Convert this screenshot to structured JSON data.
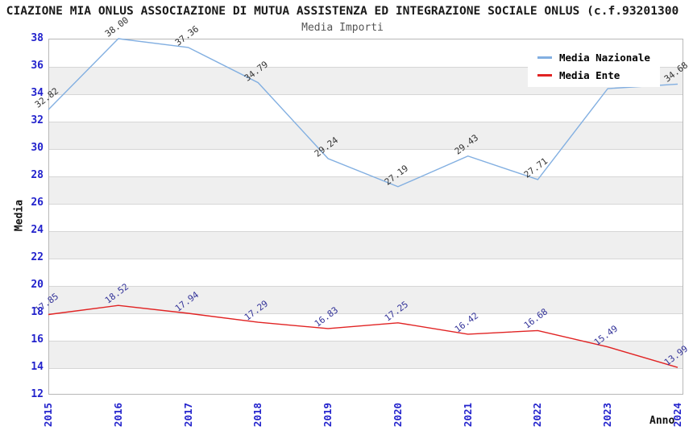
{
  "title": "CIAZIONE MIA ONLUS ASSOCIAZIONE DI MUTUA ASSISTENZA ED INTEGRAZIONE SOCIALE ONLUS (c.f.93201300",
  "subtitle": "Media Importi",
  "chart_data": {
    "type": "line",
    "x": [
      "2015",
      "2016",
      "2017",
      "2018",
      "2019",
      "2020",
      "2021",
      "2022",
      "2023",
      "2024"
    ],
    "xlabel": "Anno",
    "ylabel": "Media",
    "ylim": [
      12,
      38
    ],
    "ytick_step": 2,
    "grid": true,
    "alternating_bands": true,
    "legend_position": "top-right",
    "series": [
      {
        "name": "Media Nazionale",
        "color": "#82AFE1",
        "values": [
          32.82,
          38.0,
          37.36,
          34.79,
          29.24,
          27.19,
          29.43,
          27.71,
          34.35,
          34.68
        ],
        "point_labels": [
          "32.82",
          "38.00",
          "37.36",
          "34.79",
          "29.24",
          "27.19",
          "29.43",
          "27.71",
          null,
          "34.68"
        ],
        "label_color": "#333333"
      },
      {
        "name": "Media Ente",
        "color": "#E12323",
        "values": [
          17.85,
          18.52,
          17.94,
          17.29,
          16.83,
          17.25,
          16.42,
          16.68,
          15.49,
          13.99
        ],
        "point_labels": [
          "17.85",
          "18.52",
          "17.94",
          "17.29",
          "16.83",
          "17.25",
          "16.42",
          "16.68",
          "15.49",
          "13.99"
        ],
        "label_color": "#333399"
      }
    ]
  },
  "colors": {
    "axis_tick_text": "#2222CC",
    "band": "#EFEFEF",
    "gridline": "#D6D6D6",
    "plot_border": "#B8B8B8",
    "background": "#FFFFFF"
  }
}
